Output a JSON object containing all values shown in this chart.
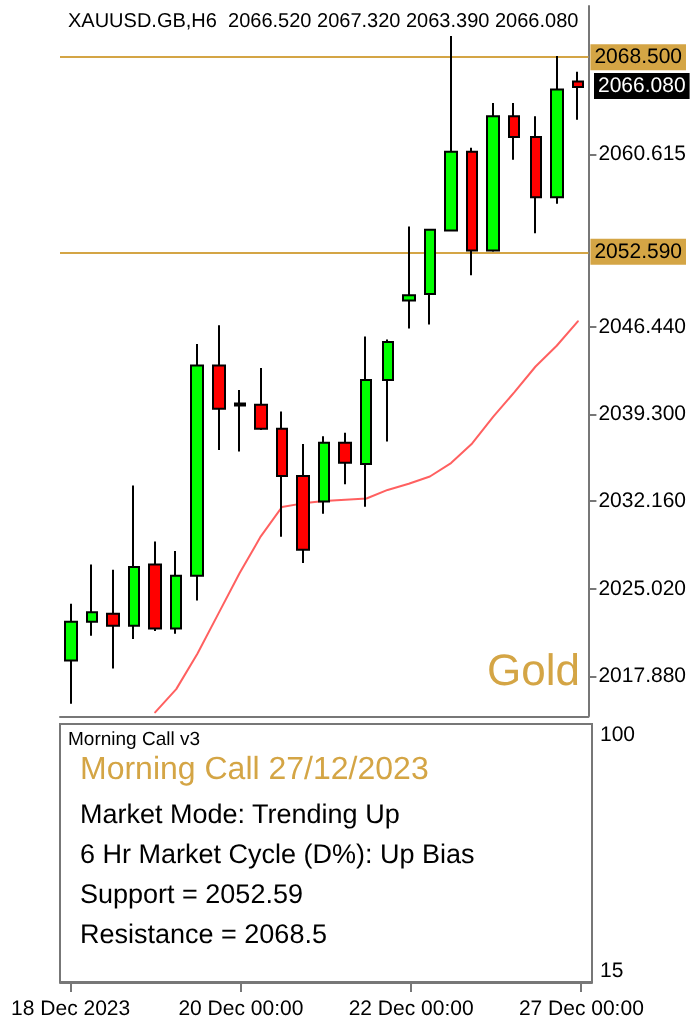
{
  "chart_data": [
    {
      "type": "candlestick",
      "title": "XAUUSD.GB,H6  2066.520 2067.320 2063.390 2066.080",
      "categories": [
        null,
        null,
        null,
        null,
        null,
        null,
        null,
        null,
        null,
        null,
        null,
        null,
        null,
        null,
        null,
        null,
        null,
        null,
        null,
        null,
        null,
        null,
        null,
        null,
        null
      ],
      "ohlc": [
        [
          2019.15,
          2023.79,
          2015.6,
          2022.31
        ],
        [
          2022.31,
          2027.0,
          2021.17,
          2023.08
        ],
        [
          2022.97,
          2026.57,
          2018.49,
          2021.98
        ],
        [
          2021.98,
          2033.46,
          2020.9,
          2026.8
        ],
        [
          2027.0,
          2028.87,
          2021.55,
          2021.77
        ],
        [
          2021.77,
          2028.11,
          2021.33,
          2026.08
        ],
        [
          2026.08,
          2045.04,
          2024.06,
          2043.29
        ],
        [
          2043.29,
          2046.57,
          2036.36,
          2039.75
        ],
        [
          2040.18,
          2041.28,
          2036.24,
          2040.0
        ],
        [
          2040.07,
          2043.08,
          2038.0,
          2038.11
        ],
        [
          2038.11,
          2039.52,
          2029.26,
          2034.23
        ],
        [
          2034.23,
          2036.85,
          2027.13,
          2028.21
        ],
        [
          2032.15,
          2037.5,
          2031.16,
          2036.96
        ],
        [
          2036.96,
          2037.78,
          2033.57,
          2035.33
        ],
        [
          2035.22,
          2045.65,
          2031.72,
          2042.1
        ],
        [
          2042.1,
          2045.4,
          2037.06,
          2045.21
        ],
        [
          2048.6,
          2054.66,
          2046.3,
          2049.03
        ],
        [
          2049.14,
          2054.39,
          2046.63,
          2054.39
        ],
        [
          2054.33,
          2070.24,
          2054.3,
          2060.78
        ],
        [
          2060.78,
          2061.11,
          2050.67,
          2052.7
        ],
        [
          2052.7,
          2064.76,
          2052.6,
          2063.68
        ],
        [
          2063.68,
          2064.76,
          2060.12,
          2061.97
        ],
        [
          2061.97,
          2063.68,
          2054.11,
          2057.06
        ],
        [
          2057.06,
          2068.6,
          2056.52,
          2065.86
        ],
        [
          2066.52,
          2067.32,
          2063.39,
          2066.08
        ]
      ],
      "colors": [
        "#00ff00",
        "#00ff00",
        "#ff0000",
        "#00ff00",
        "#ff0000",
        "#00ff00",
        "#00ff00",
        "#ff0000",
        "#ff0000",
        "#ff0000",
        "#ff0000",
        "#ff0000",
        "#00ff00",
        "#ff0000",
        "#00ff00",
        "#00ff00",
        "#00ff00",
        "#00ff00",
        "#00ff00",
        "#ff0000",
        "#00ff00",
        "#ff0000",
        "#ff0000",
        "#00ff00",
        "#ff0000"
      ],
      "series": [
        {
          "type": "line",
          "color": "#ff6060",
          "values": [
            null,
            null,
            null,
            null,
            2014.9,
            2016.8,
            2019.7,
            2023.0,
            2026.3,
            2029.3,
            2031.7,
            2032.0,
            2032.2,
            2032.3,
            2032.4,
            2033.1,
            2033.6,
            2034.2,
            2035.3,
            2036.9,
            2039.1,
            2041.1,
            2043.2,
            2044.9,
            2046.9
          ]
        }
      ],
      "ylim": [
        2014.6,
        2072.7
      ],
      "yticks": [
        {
          "value": 2017.88,
          "label": "2017.880"
        },
        {
          "value": 2025.02,
          "label": "2025.020"
        },
        {
          "value": 2032.16,
          "label": "2032.160"
        },
        {
          "value": 2039.3,
          "label": "2039.300"
        },
        {
          "value": 2046.44,
          "label": "2046.440"
        },
        {
          "value": 2060.615,
          "label": "2060.615"
        }
      ],
      "ref_lines": [
        {
          "axis": "y",
          "value": 2068.5,
          "label": "2068.500",
          "color": "#d4a545"
        },
        {
          "axis": "y",
          "value": 2052.59,
          "label": "2052.590",
          "color": "#d4a545"
        }
      ],
      "annotations": [
        "2066.080",
        "Gold"
      ],
      "tick_labels": "y",
      "grid": false,
      "marker": "none"
    },
    {
      "type": "other",
      "title": "Morning Call v3",
      "categories": [
        "18 Dec 2023",
        null,
        null,
        null,
        null,
        null,
        null,
        null,
        "20 Dec 00:00",
        null,
        null,
        null,
        null,
        null,
        null,
        null,
        "22 Dec 00:00",
        null,
        null,
        null,
        null,
        null,
        null,
        null,
        "27 Dec 00:00"
      ],
      "annotations": [
        "Morning Call 27/12/2023",
        "Market Mode: Trending Up",
        "6 Hr Market Cycle (D%): Up Bias",
        "Support = 2052.59",
        "Resistance = 2068.5",
        "100",
        "15"
      ]
    }
  ]
}
